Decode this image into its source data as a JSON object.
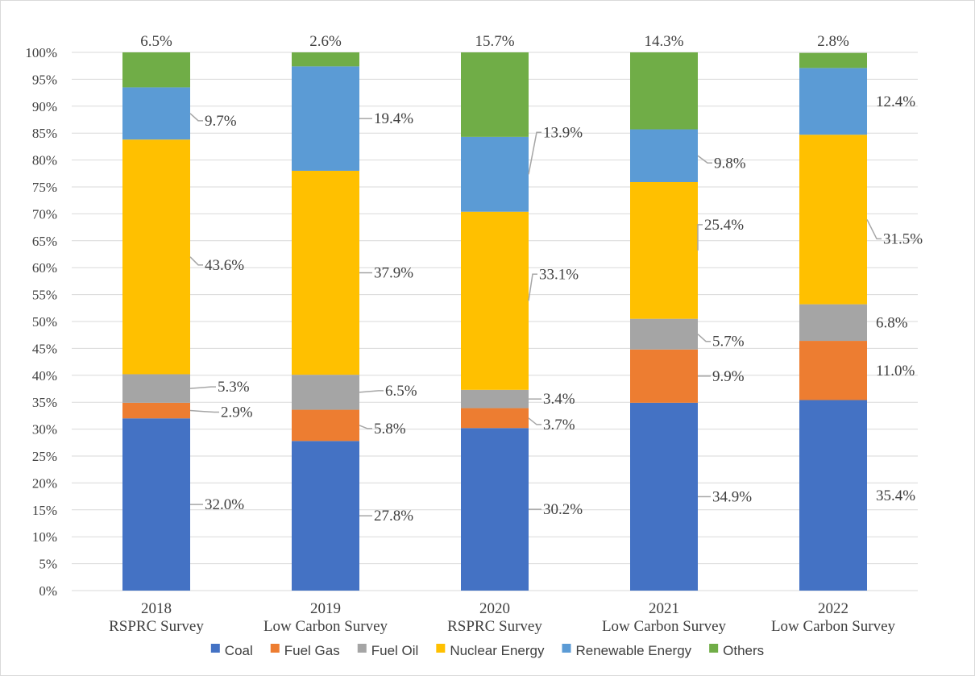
{
  "chart_data": {
    "type": "bar",
    "stacked": true,
    "title": "",
    "xlabel": "",
    "ylabel": "",
    "ylim": [
      0,
      100
    ],
    "y_ticks": [
      "0%",
      "5%",
      "10%",
      "15%",
      "20%",
      "25%",
      "30%",
      "35%",
      "40%",
      "45%",
      "50%",
      "55%",
      "60%",
      "65%",
      "70%",
      "75%",
      "80%",
      "85%",
      "90%",
      "95%",
      "100%"
    ],
    "grid": true,
    "legend_position": "bottom",
    "categories": [
      {
        "year": "2018",
        "survey": "RSPRC Survey"
      },
      {
        "year": "2019",
        "survey": "Low Carbon Survey"
      },
      {
        "year": "2020",
        "survey": "RSPRC Survey"
      },
      {
        "year": "2021",
        "survey": "Low Carbon Survey"
      },
      {
        "year": "2022",
        "survey": "Low Carbon Survey"
      }
    ],
    "series": [
      {
        "name": "Coal",
        "color": "#4472C4",
        "values": [
          32.0,
          27.8,
          30.2,
          34.9,
          35.4
        ],
        "labels": [
          "32.0%",
          "27.8%",
          "30.2%",
          "34.9%",
          "35.4%"
        ]
      },
      {
        "name": "Fuel Gas",
        "color": "#ED7D31",
        "values": [
          2.9,
          5.8,
          3.7,
          9.9,
          11.0
        ],
        "labels": [
          "2.9%",
          "5.8%",
          "3.7%",
          "9.9%",
          "11.0%"
        ]
      },
      {
        "name": "Fuel Oil",
        "color": "#A5A5A5",
        "values": [
          5.3,
          6.5,
          3.4,
          5.7,
          6.8
        ],
        "labels": [
          "5.3%",
          "6.5%",
          "3.4%",
          "5.7%",
          "6.8%"
        ]
      },
      {
        "name": "Nuclear Energy",
        "color": "#FFC000",
        "values": [
          43.6,
          37.9,
          33.1,
          25.4,
          31.5
        ],
        "labels": [
          "43.6%",
          "37.9%",
          "33.1%",
          "25.4%",
          "31.5%"
        ]
      },
      {
        "name": "Renewable Energy",
        "color": "#5B9BD5",
        "values": [
          9.7,
          19.4,
          13.9,
          9.8,
          12.4
        ],
        "labels": [
          "9.7%",
          "19.4%",
          "13.9%",
          "9.8%",
          "12.4%"
        ]
      },
      {
        "name": "Others",
        "color": "#70AD47",
        "values": [
          6.5,
          2.6,
          15.7,
          14.3,
          2.8
        ],
        "labels": [
          "6.5%",
          "2.6%",
          "15.7%",
          "14.3%",
          "2.8%"
        ]
      }
    ]
  }
}
